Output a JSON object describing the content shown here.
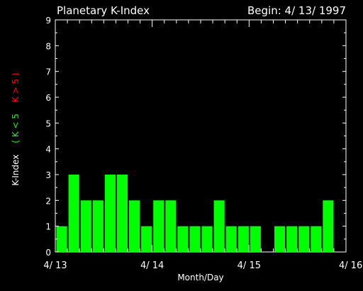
{
  "chart_data": {
    "type": "bar",
    "title": "Planetary K-Index",
    "subtitle": "Begin: 4/ 13/ 1997",
    "xlabel": "Month/Day",
    "ylabel": "K-Index",
    "legend_items": [
      {
        "label": "( K < 5",
        "color": "#00ff00"
      },
      {
        "label": "K > 5 )",
        "color": "#ff0000"
      }
    ],
    "ylim": [
      0,
      9
    ],
    "yticks": [
      "0",
      "1",
      "2",
      "3",
      "4",
      "5",
      "6",
      "7",
      "8",
      "9"
    ],
    "xticks": [
      "4/ 13",
      "4/ 14",
      "4/ 15",
      "4/ 16"
    ],
    "bar_color": "#00ff00",
    "high_color": "#ff0000",
    "bars_per_day": 8,
    "values": [
      1,
      3,
      2,
      2,
      3,
      3,
      2,
      1,
      2,
      2,
      1,
      1,
      1,
      2,
      1,
      1,
      1,
      0,
      1,
      1,
      1,
      1,
      2,
      0
    ]
  }
}
